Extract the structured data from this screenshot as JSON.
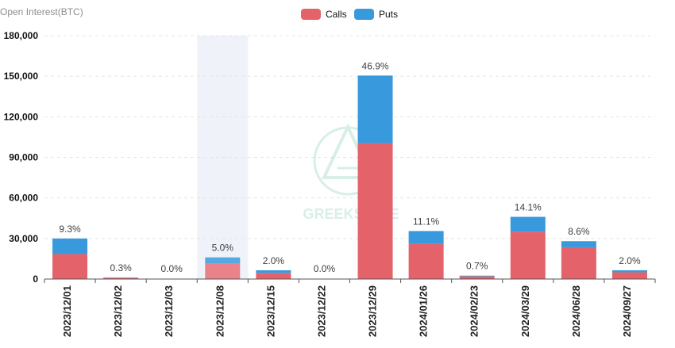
{
  "chart_data": {
    "type": "bar",
    "title": "Open Interest(BTC)",
    "xlabel": "",
    "ylabel": "Open Interest(BTC)",
    "ylim": [
      0,
      180000
    ],
    "yticks": [
      0,
      30000,
      60000,
      90000,
      120000,
      150000,
      180000
    ],
    "ytick_labels": [
      "0",
      "30,000",
      "60,000",
      "90,000",
      "120,000",
      "150,000",
      "180,000"
    ],
    "grid": "y-major dashed",
    "legend": {
      "placement": "top-center",
      "entries": [
        "Calls",
        "Puts"
      ]
    },
    "highlighted_category": "2023/12/08",
    "categories": [
      "2023/12/01",
      "2023/12/02",
      "2023/12/03",
      "2023/12/08",
      "2023/12/15",
      "2023/12/22",
      "2023/12/29",
      "2024/01/26",
      "2024/02/23",
      "2024/03/29",
      "2024/06/28",
      "2024/09/27"
    ],
    "series": [
      {
        "name": "Calls",
        "color": "#e4636a",
        "values": [
          18500,
          900,
          0,
          11500,
          4500,
          0,
          100500,
          26000,
          2000,
          35000,
          23500,
          5000
        ]
      },
      {
        "name": "Puts",
        "color": "#3899dd",
        "values": [
          11500,
          200,
          0,
          4500,
          2000,
          0,
          50000,
          9500,
          500,
          11000,
          4500,
          1500
        ]
      }
    ],
    "percent_labels": [
      "9.3%",
      "0.3%",
      "0.0%",
      "5.0%",
      "2.0%",
      "0.0%",
      "46.9%",
      "11.1%",
      "0.7%",
      "14.1%",
      "8.6%",
      "2.0%"
    ]
  },
  "watermark": {
    "text": "GREEKS.LIVE"
  }
}
